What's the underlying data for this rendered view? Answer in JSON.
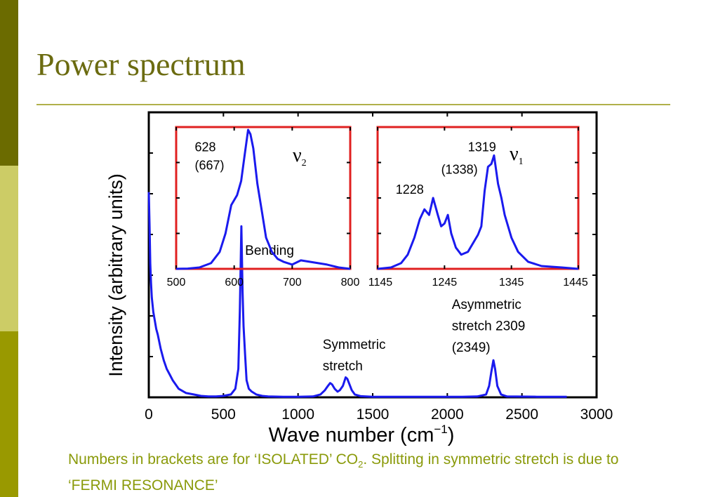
{
  "slide": {
    "title": "Power spectrum",
    "caption_part1": "Numbers in brackets are for ‘ISOLATED’ CO",
    "caption_sub": "2",
    "caption_part2": ". Splitting in symmetric stretch is due to ‘FERMI RESONANCE’"
  },
  "colors": {
    "title": "#6b6b10",
    "caption": "#8a9a0a",
    "rule": "#b0b04a",
    "sidebar_top": "#6b6b00",
    "sidebar_mid": "#cccc66",
    "sidebar_bottom": "#999900",
    "series": "#1a1aee",
    "inset_frame": "#e02020"
  },
  "chart_data": [
    {
      "type": "line",
      "id": "main",
      "xlabel": "Wave number (cm",
      "xlabel_sup": "−1",
      "xlabel_close": ")",
      "ylabel": "Intensity (arbitrary units)",
      "xlim": [
        0,
        3000
      ],
      "ylim": [
        0,
        1.0
      ],
      "x_ticks": [
        0,
        500,
        1000,
        1500,
        2000,
        2500,
        3000
      ],
      "x_tick_labels": [
        "0",
        "500",
        "1000",
        "1500",
        "2000",
        "2500",
        "3000"
      ],
      "grid": false,
      "series": [
        {
          "x": [
            0,
            5,
            10,
            15,
            20,
            30,
            40,
            50,
            60,
            80,
            100,
            120,
            140,
            160,
            180,
            200,
            250,
            300,
            350,
            400,
            450,
            500,
            550,
            580,
            600,
            610,
            620,
            628,
            635,
            645,
            655,
            670,
            690,
            720,
            760,
            800,
            900,
            1000,
            1100,
            1150,
            1180,
            1200,
            1215,
            1228,
            1245,
            1265,
            1280,
            1300,
            1319,
            1330,
            1345,
            1360,
            1380,
            1420,
            1500,
            1700,
            1900,
            2100,
            2200,
            2260,
            2280,
            2295,
            2309,
            2320,
            2335,
            2360,
            2400,
            2600,
            2800
          ],
          "y": [
            0.72,
            0.6,
            0.47,
            0.4,
            0.35,
            0.3,
            0.27,
            0.24,
            0.22,
            0.17,
            0.13,
            0.1,
            0.08,
            0.06,
            0.045,
            0.03,
            0.015,
            0.01,
            0.005,
            0.003,
            0.003,
            0.005,
            0.01,
            0.03,
            0.1,
            0.3,
            0.6,
            0.37,
            0.25,
            0.15,
            0.06,
            0.03,
            0.02,
            0.01,
            0.005,
            0.003,
            0.002,
            0.002,
            0.003,
            0.01,
            0.025,
            0.04,
            0.05,
            0.045,
            0.03,
            0.02,
            0.025,
            0.04,
            0.07,
            0.065,
            0.045,
            0.025,
            0.01,
            0.004,
            0.002,
            0.002,
            0.002,
            0.002,
            0.003,
            0.01,
            0.04,
            0.09,
            0.13,
            0.1,
            0.04,
            0.01,
            0.003,
            0.002,
            0.002
          ]
        }
      ],
      "annotations": [
        {
          "text": "Bending",
          "x": 645,
          "y": 0.5
        },
        {
          "text": "Symmetric",
          "x": 1165,
          "y": 0.17
        },
        {
          "text": "stretch",
          "x": 1165,
          "y": 0.095
        },
        {
          "text": "Asymmetric",
          "x": 2030,
          "y": 0.31
        },
        {
          "text": "stretch  2309",
          "x": 2030,
          "y": 0.235
        },
        {
          "text": "(2349)",
          "x": 2030,
          "y": 0.16
        }
      ]
    },
    {
      "type": "line",
      "id": "inset-nu2",
      "label": "ν",
      "label_sub": "2",
      "xlim": [
        500,
        800
      ],
      "ylim": [
        0,
        1.0
      ],
      "x_ticks": [
        500,
        600,
        700,
        800
      ],
      "x_tick_labels": [
        "500",
        "600",
        "700",
        "800"
      ],
      "series": [
        {
          "x": [
            500,
            520,
            540,
            560,
            575,
            585,
            595,
            605,
            612,
            618,
            624,
            628,
            633,
            640,
            648,
            655,
            665,
            675,
            685,
            700,
            715,
            730,
            745,
            760,
            780,
            800
          ],
          "y": [
            0.0,
            0.002,
            0.01,
            0.04,
            0.12,
            0.25,
            0.45,
            0.52,
            0.62,
            0.8,
            0.98,
            0.95,
            0.85,
            0.6,
            0.4,
            0.22,
            0.12,
            0.07,
            0.05,
            0.03,
            0.06,
            0.05,
            0.04,
            0.03,
            0.01,
            0.0
          ]
        }
      ],
      "annotations": [
        {
          "text": "628",
          "x": 532,
          "y": 0.83
        },
        {
          "text": "(667)",
          "x": 532,
          "y": 0.7
        }
      ]
    },
    {
      "type": "line",
      "id": "inset-nu1",
      "label": "ν",
      "label_sub": "1",
      "xlim": [
        1145,
        1445
      ],
      "ylim": [
        0,
        1.0
      ],
      "x_ticks": [
        1145,
        1245,
        1345,
        1445
      ],
      "x_tick_labels": [
        "1145",
        "1245",
        "1345",
        "1445"
      ],
      "series": [
        {
          "x": [
            1145,
            1165,
            1180,
            1190,
            1200,
            1208,
            1215,
            1222,
            1228,
            1235,
            1240,
            1245,
            1250,
            1255,
            1262,
            1270,
            1280,
            1290,
            1295,
            1300,
            1305,
            1310,
            1315,
            1319,
            1325,
            1330,
            1335,
            1345,
            1355,
            1370,
            1390,
            1420,
            1445
          ],
          "y": [
            0.0,
            0.01,
            0.04,
            0.1,
            0.22,
            0.35,
            0.42,
            0.38,
            0.5,
            0.38,
            0.3,
            0.32,
            0.38,
            0.25,
            0.15,
            0.1,
            0.12,
            0.2,
            0.24,
            0.3,
            0.55,
            0.72,
            0.74,
            0.8,
            0.6,
            0.5,
            0.38,
            0.22,
            0.12,
            0.05,
            0.02,
            0.01,
            0.0
          ]
        }
      ],
      "annotations": [
        {
          "text": "1319",
          "x": 1280,
          "y": 0.83
        },
        {
          "text": "(1338)",
          "x": 1240,
          "y": 0.67
        },
        {
          "text": "1228",
          "x": 1172,
          "y": 0.53
        }
      ]
    }
  ]
}
